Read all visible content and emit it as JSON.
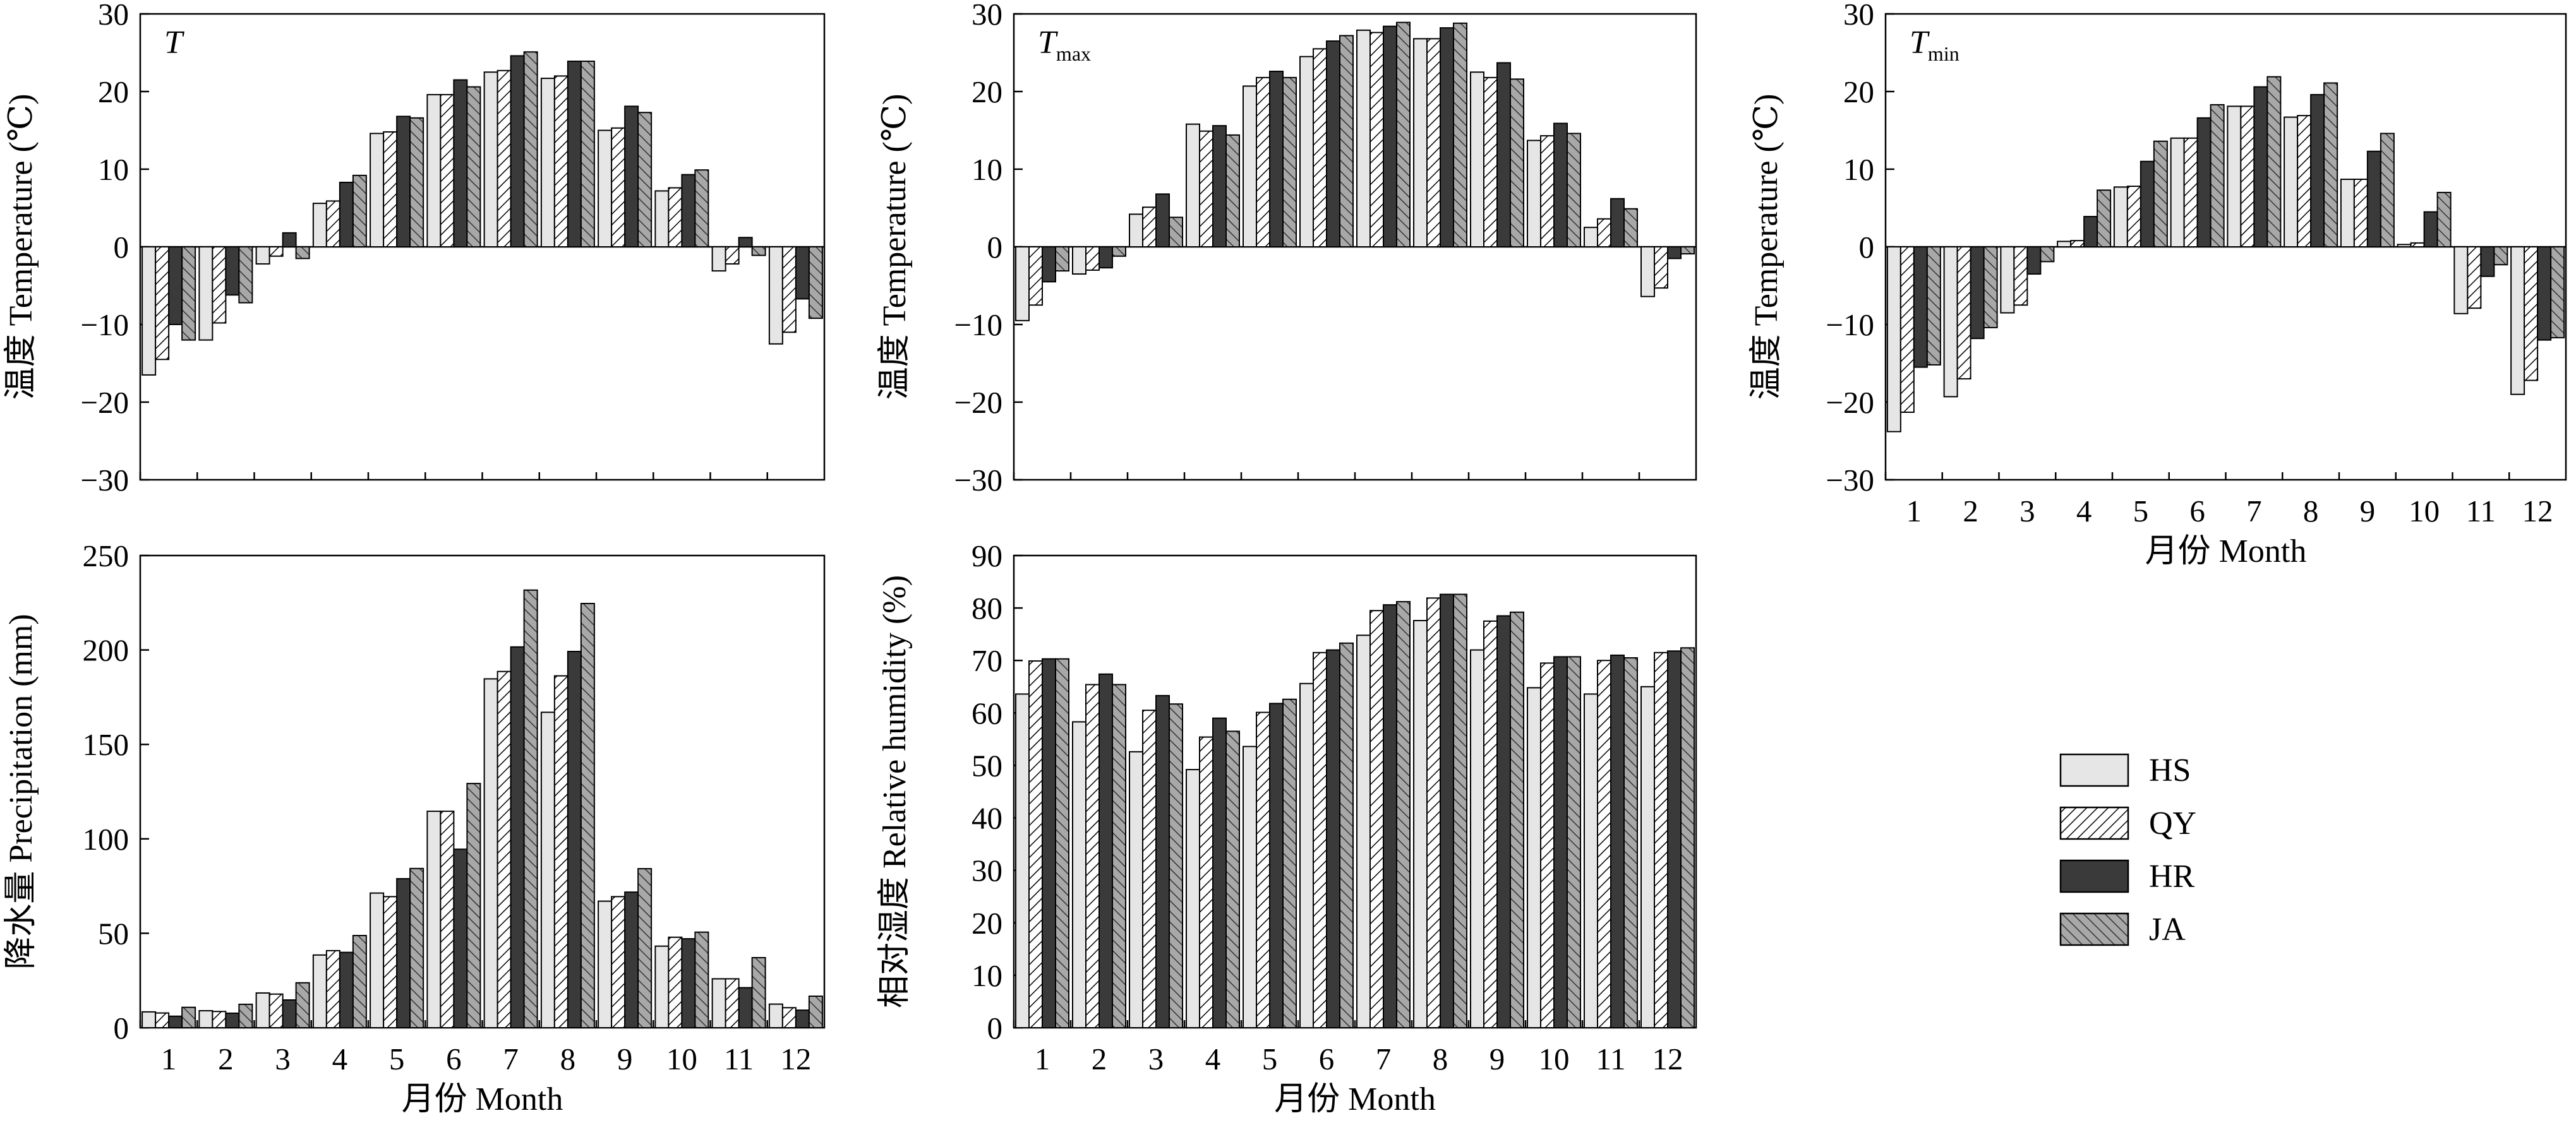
{
  "series_style": [
    {
      "name": "HS",
      "fill": "#e6e6e6",
      "pattern": "none"
    },
    {
      "name": "QY",
      "fill": "#ffffff",
      "pattern": "hatch-light"
    },
    {
      "name": "HR",
      "fill": "#3a3a3a",
      "pattern": "none"
    },
    {
      "name": "JA",
      "fill": "#a8a8a8",
      "pattern": "hatch-dark"
    }
  ],
  "legend": {
    "entries": [
      "HS",
      "QY",
      "HR",
      "JA"
    ]
  },
  "chart_data": [
    {
      "type": "bar",
      "id": "T",
      "title": "T",
      "title_sub": "",
      "xlabel": "",
      "ylabel": "温度 Temperature (℃)",
      "ylim": [
        -30,
        30
      ],
      "yticks": [
        -30,
        -20,
        -10,
        0,
        10,
        20,
        30
      ],
      "categories": [
        "1",
        "2",
        "3",
        "4",
        "5",
        "6",
        "7",
        "8",
        "9",
        "10",
        "11",
        "12"
      ],
      "show_xticklabels": false,
      "series": [
        {
          "name": "HS",
          "values": [
            -16.5,
            -12,
            -2.2,
            5.6,
            14.6,
            19.6,
            22.5,
            21.7,
            15,
            7.2,
            -3.1,
            -12.5
          ]
        },
        {
          "name": "QY",
          "values": [
            -14.5,
            -9.8,
            -1.2,
            5.9,
            14.8,
            19.6,
            22.7,
            22,
            15.3,
            7.6,
            -2.2,
            -11
          ]
        },
        {
          "name": "HR",
          "values": [
            -10,
            -6.2,
            1.8,
            8.3,
            16.8,
            21.5,
            24.6,
            23.9,
            18.1,
            9.3,
            1.2,
            -6.7
          ]
        },
        {
          "name": "JA",
          "values": [
            -12,
            -7.2,
            -1.5,
            9.2,
            16.6,
            20.6,
            25.1,
            23.9,
            17.3,
            9.9,
            -1.1,
            -9.2
          ]
        }
      ]
    },
    {
      "type": "bar",
      "id": "Tmax",
      "title": "T",
      "title_sub": "max",
      "xlabel": "",
      "ylabel": "温度 Temperature (℃)",
      "ylim": [
        -30,
        30
      ],
      "yticks": [
        -30,
        -20,
        -10,
        0,
        10,
        20,
        30
      ],
      "categories": [
        "1",
        "2",
        "3",
        "4",
        "5",
        "6",
        "7",
        "8",
        "9",
        "10",
        "11",
        "12"
      ],
      "show_xticklabels": false,
      "series": [
        {
          "name": "HS",
          "values": [
            -9.5,
            -3.5,
            4.2,
            15.8,
            20.7,
            24.5,
            27.9,
            26.8,
            22.5,
            13.7,
            2.5,
            -6.4
          ]
        },
        {
          "name": "QY",
          "values": [
            -7.5,
            -3,
            5.1,
            14.9,
            21.8,
            25.5,
            27.6,
            26.8,
            21.8,
            14.3,
            3.6,
            -5.3
          ]
        },
        {
          "name": "HR",
          "values": [
            -4.5,
            -2.7,
            6.8,
            15.6,
            22.6,
            26.5,
            28.4,
            28.2,
            23.7,
            15.9,
            6.2,
            -1.5
          ]
        },
        {
          "name": "JA",
          "values": [
            -3.1,
            -1.2,
            3.8,
            14.4,
            21.8,
            27.2,
            28.9,
            28.8,
            21.6,
            14.6,
            4.9,
            -0.9
          ]
        }
      ]
    },
    {
      "type": "bar",
      "id": "Tmin",
      "title": "T",
      "title_sub": "min",
      "xlabel": "月份 Month",
      "ylabel": "温度 Temperature (℃)",
      "ylim": [
        -30,
        30
      ],
      "yticks": [
        -30,
        -20,
        -10,
        0,
        10,
        20,
        30
      ],
      "categories": [
        "1",
        "2",
        "3",
        "4",
        "5",
        "6",
        "7",
        "8",
        "9",
        "10",
        "11",
        "12"
      ],
      "show_xticklabels": true,
      "series": [
        {
          "name": "HS",
          "values": [
            -23.8,
            -19.3,
            -8.5,
            0.7,
            7.7,
            14,
            18.1,
            16.7,
            8.7,
            0.3,
            -8.6,
            -19
          ]
        },
        {
          "name": "QY",
          "values": [
            -21.3,
            -17,
            -7.5,
            0.8,
            7.8,
            14,
            18.1,
            16.9,
            8.7,
            0.5,
            -7.9,
            -17.2
          ]
        },
        {
          "name": "HR",
          "values": [
            -15.5,
            -11.8,
            -3.5,
            3.9,
            11,
            16.6,
            20.6,
            19.6,
            12.3,
            4.5,
            -3.8,
            -12
          ]
        },
        {
          "name": "JA",
          "values": [
            -15.2,
            -10.4,
            -1.9,
            7.3,
            13.6,
            18.3,
            21.9,
            21.1,
            14.6,
            7,
            -2.3,
            -11.7
          ]
        }
      ]
    },
    {
      "type": "bar",
      "id": "Precip",
      "title": "",
      "title_sub": "",
      "xlabel": "月份 Month",
      "ylabel": "降水量 Precipitation (mm)",
      "ylim": [
        0,
        250
      ],
      "yticks": [
        0,
        50,
        100,
        150,
        200,
        250
      ],
      "categories": [
        "1",
        "2",
        "3",
        "4",
        "5",
        "6",
        "7",
        "8",
        "9",
        "10",
        "11",
        "12"
      ],
      "show_xticklabels": true,
      "series": [
        {
          "name": "HS",
          "values": [
            8.4,
            9,
            18.4,
            38.5,
            71.3,
            114.6,
            184.7,
            167,
            67,
            43.2,
            25.9,
            12.5
          ]
        },
        {
          "name": "QY",
          "values": [
            7.8,
            8.6,
            17.8,
            40.8,
            69.4,
            114.6,
            188.6,
            186.3,
            69.4,
            47.9,
            25.9,
            10.6
          ]
        },
        {
          "name": "HR",
          "values": [
            6.1,
            7.7,
            14.7,
            39.9,
            78.9,
            94.5,
            201.6,
            199.2,
            71.8,
            47.1,
            21.2,
            9.3
          ]
        },
        {
          "name": "JA",
          "values": [
            10.8,
            12.4,
            23.8,
            48.8,
            84.3,
            129.3,
            231.7,
            224.6,
            84.2,
            50.6,
            37.1,
            16.7
          ]
        }
      ]
    },
    {
      "type": "bar",
      "id": "RH",
      "title": "",
      "title_sub": "",
      "xlabel": "月份 Month",
      "ylabel": "相对湿度 Relative humidity (%)",
      "ylim": [
        0,
        90
      ],
      "yticks": [
        0,
        10,
        20,
        30,
        40,
        50,
        60,
        70,
        80,
        90
      ],
      "categories": [
        "1",
        "2",
        "3",
        "4",
        "5",
        "6",
        "7",
        "8",
        "9",
        "10",
        "11",
        "12"
      ],
      "show_xticklabels": true,
      "series": [
        {
          "name": "HS",
          "values": [
            63.6,
            58.3,
            52.6,
            49.2,
            53.6,
            65.6,
            74.8,
            77.6,
            72,
            64.8,
            63.6,
            65
          ]
        },
        {
          "name": "QY",
          "values": [
            69.9,
            65.4,
            60.5,
            55.4,
            60.1,
            71.5,
            79.5,
            81.9,
            77.5,
            69.5,
            70,
            71.5
          ]
        },
        {
          "name": "HR",
          "values": [
            70.3,
            67.4,
            63.3,
            59,
            61.8,
            72,
            80.6,
            82.6,
            78.5,
            70.7,
            71,
            71.8
          ]
        },
        {
          "name": "JA",
          "values": [
            70.3,
            65.4,
            61.7,
            56.5,
            62.6,
            73.3,
            81.2,
            82.6,
            79.2,
            70.7,
            70.5,
            72.4
          ]
        }
      ]
    }
  ]
}
